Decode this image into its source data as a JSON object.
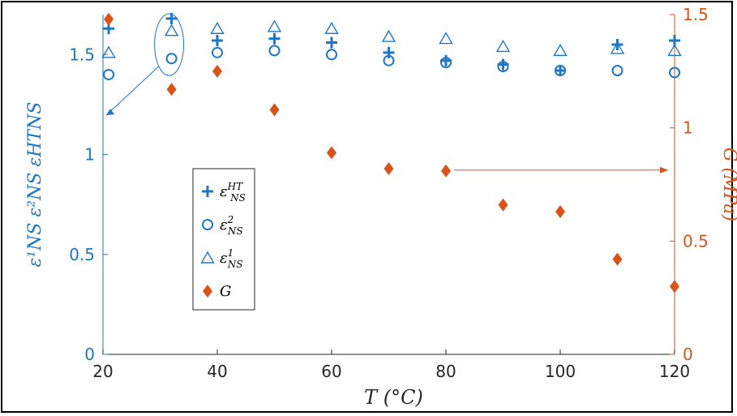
{
  "chart_data": {
    "type": "scatter",
    "xlabel": "T (°C)",
    "ylabel_left": "ε¹NS ε²NS εHTNS",
    "ylabel_right": "G (MPa)",
    "xlim": [
      20,
      120
    ],
    "ylim_left": [
      0,
      1.7
    ],
    "ylim_right": [
      0,
      1.5
    ],
    "x_ticks": [
      "20",
      "40",
      "60",
      "80",
      "100",
      "120"
    ],
    "y_ticks_left": [
      "0",
      "0.5",
      "1",
      "1.5"
    ],
    "y_ticks_right": [
      "0",
      "0.5",
      "1",
      "1.5"
    ],
    "grid": false,
    "legend_position": "center-left",
    "colors": {
      "blue": "#1f77c4",
      "orange": "#d95319"
    },
    "series": [
      {
        "name": "εHTNS",
        "marker": "plus",
        "axis": "left",
        "x": [
          21,
          32,
          40,
          50,
          60,
          70,
          80,
          90,
          100,
          110,
          120
        ],
        "y": [
          1.63,
          1.68,
          1.57,
          1.58,
          1.56,
          1.51,
          1.47,
          1.45,
          1.42,
          1.55,
          1.57
        ]
      },
      {
        "name": "ε2NS",
        "marker": "circle",
        "axis": "left",
        "x": [
          21,
          32,
          40,
          50,
          60,
          70,
          80,
          90,
          100,
          110,
          120
        ],
        "y": [
          1.4,
          1.48,
          1.51,
          1.52,
          1.5,
          1.47,
          1.46,
          1.44,
          1.42,
          1.42,
          1.41
        ]
      },
      {
        "name": "ε1NS",
        "marker": "triangle",
        "axis": "left",
        "x": [
          21,
          32,
          40,
          50,
          60,
          70,
          80,
          90,
          100,
          110,
          120
        ],
        "y": [
          1.51,
          1.62,
          1.63,
          1.64,
          1.63,
          1.59,
          1.58,
          1.54,
          1.52,
          1.53,
          1.52
        ]
      },
      {
        "name": "G",
        "marker": "diamond",
        "axis": "right",
        "x": [
          21,
          32,
          40,
          50,
          60,
          70,
          80,
          90,
          100,
          110,
          120
        ],
        "y": [
          1.48,
          1.17,
          1.25,
          1.08,
          0.89,
          0.82,
          0.81,
          0.66,
          0.63,
          0.42,
          0.3
        ]
      }
    ],
    "legend": [
      {
        "label_base": "ε",
        "label_sub": "NS",
        "label_sup": "HT",
        "marker": "plus"
      },
      {
        "label_base": "ε",
        "label_sub": "NS",
        "label_sup": "2",
        "marker": "circle"
      },
      {
        "label_base": "ε",
        "label_sub": "NS",
        "label_sup": "1",
        "marker": "triangle"
      },
      {
        "label_base": "G",
        "label_sub": "",
        "label_sup": "",
        "marker": "diamond"
      }
    ],
    "annotations": [
      {
        "type": "ellipse-callout",
        "target_x": 32,
        "note": "points to left axis"
      },
      {
        "type": "arrow-right",
        "from_x": 80,
        "note": "points to right axis"
      }
    ]
  }
}
